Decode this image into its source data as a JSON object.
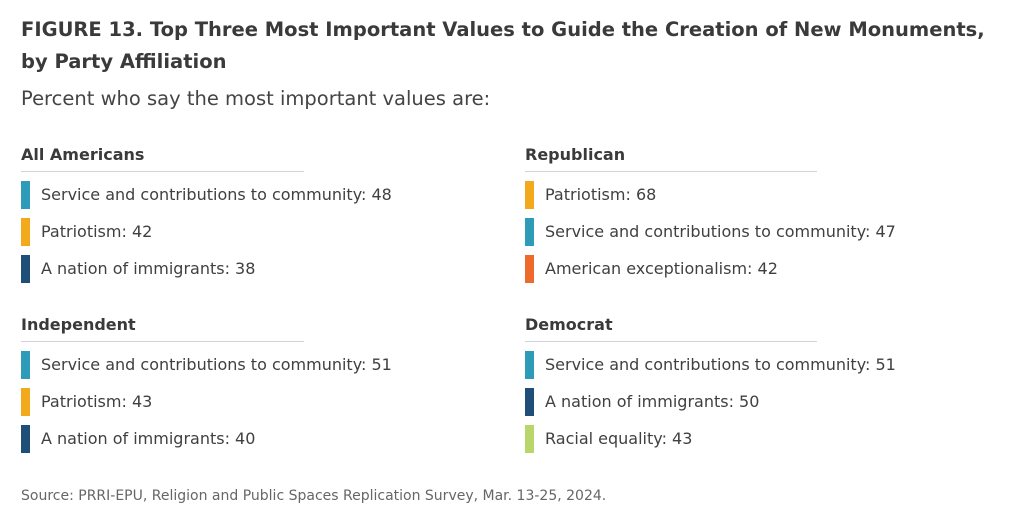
{
  "title": "FIGURE 13. Top Three Most Important Values to Guide the Creation of New Monuments, by Party Affiliation",
  "subtitle": "Percent who say the most important values are:",
  "source": "Source: PRRI-EPU, Religion and Public Spaces Replication Survey, Mar. 13-25, 2024.",
  "colors": {
    "service": "#2e9cb8",
    "patriotism": "#f2a91b",
    "immigrants": "#1f4e79",
    "exceptionalism": "#ee6a2c",
    "racial_equality": "#b9d66a"
  },
  "chart_data": {
    "type": "table",
    "groups": [
      {
        "name": "All Americans",
        "items": [
          {
            "label": "Service and contributions to community: 48",
            "value": 48,
            "color": "#2e9cb8"
          },
          {
            "label": "Patriotism: 42",
            "value": 42,
            "color": "#f2a91b"
          },
          {
            "label": "A nation of immigrants: 38",
            "value": 38,
            "color": "#1f4e79"
          }
        ]
      },
      {
        "name": "Republican",
        "items": [
          {
            "label": "Patriotism: 68",
            "value": 68,
            "color": "#f2a91b"
          },
          {
            "label": "Service and contributions to community: 47",
            "value": 47,
            "color": "#2e9cb8"
          },
          {
            "label": "American exceptionalism: 42",
            "value": 42,
            "color": "#ee6a2c"
          }
        ]
      },
      {
        "name": "Independent",
        "items": [
          {
            "label": "Service and contributions to community: 51",
            "value": 51,
            "color": "#2e9cb8"
          },
          {
            "label": "Patriotism: 43",
            "value": 43,
            "color": "#f2a91b"
          },
          {
            "label": "A nation of immigrants: 40",
            "value": 40,
            "color": "#1f4e79"
          }
        ]
      },
      {
        "name": "Democrat",
        "items": [
          {
            "label": "Service and contributions to community: 51",
            "value": 51,
            "color": "#2e9cb8"
          },
          {
            "label": "A nation of immigrants: 50",
            "value": 50,
            "color": "#1f4e79"
          },
          {
            "label": "Racial equality: 43",
            "value": 43,
            "color": "#b9d66a"
          }
        ]
      }
    ]
  }
}
